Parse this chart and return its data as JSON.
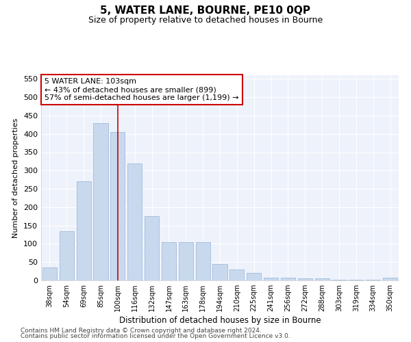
{
  "title": "5, WATER LANE, BOURNE, PE10 0QP",
  "subtitle": "Size of property relative to detached houses in Bourne",
  "xlabel": "Distribution of detached houses by size in Bourne",
  "ylabel": "Number of detached properties",
  "categories": [
    "38sqm",
    "54sqm",
    "69sqm",
    "85sqm",
    "100sqm",
    "116sqm",
    "132sqm",
    "147sqm",
    "163sqm",
    "178sqm",
    "194sqm",
    "210sqm",
    "225sqm",
    "241sqm",
    "256sqm",
    "272sqm",
    "288sqm",
    "303sqm",
    "319sqm",
    "334sqm",
    "350sqm"
  ],
  "values": [
    35,
    135,
    270,
    430,
    405,
    320,
    175,
    105,
    105,
    105,
    45,
    30,
    20,
    8,
    8,
    5,
    5,
    2,
    2,
    2,
    8
  ],
  "bar_color": "#c8d9ee",
  "bar_edge_color": "#a8c0de",
  "vline_x": 4,
  "vline_color": "#cc0000",
  "annotation_text": "5 WATER LANE: 103sqm\n← 43% of detached houses are smaller (899)\n57% of semi-detached houses are larger (1,199) →",
  "annotation_box_color": "#ffffff",
  "annotation_box_edge_color": "#cc0000",
  "ylim": [
    0,
    560
  ],
  "yticks": [
    0,
    50,
    100,
    150,
    200,
    250,
    300,
    350,
    400,
    450,
    500,
    550
  ],
  "background_color": "#eef2fb",
  "footer_line1": "Contains HM Land Registry data © Crown copyright and database right 2024.",
  "footer_line2": "Contains public sector information licensed under the Open Government Licence v3.0."
}
